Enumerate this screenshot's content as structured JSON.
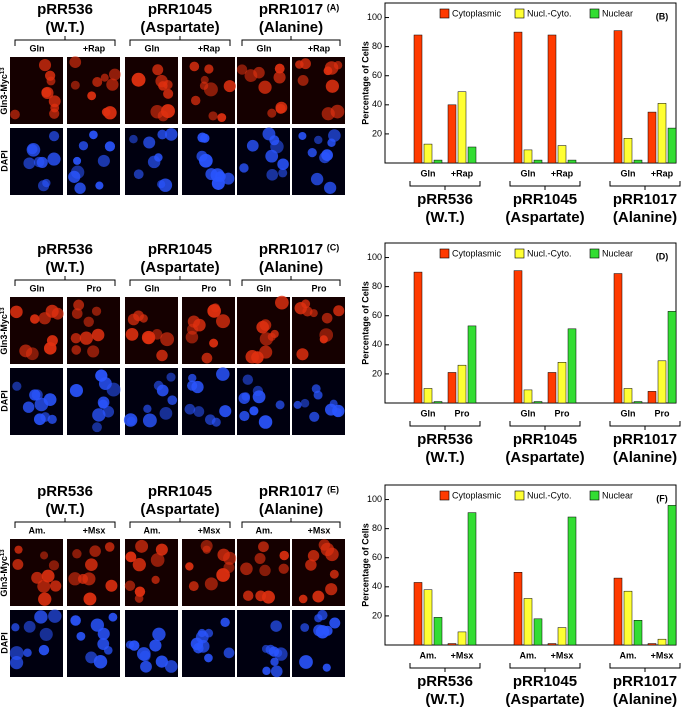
{
  "image_panels": [
    {
      "label": "(A)",
      "strains": [
        {
          "name": "pRR536",
          "variant": "(W.T.)",
          "conditions": [
            "Gln",
            "+Rap"
          ]
        },
        {
          "name": "pRR1045",
          "variant": "(Aspartate)",
          "conditions": [
            "Gln",
            "+Rap"
          ]
        },
        {
          "name": "pRR1017",
          "variant": "(Alanine)",
          "conditions": [
            "Gln",
            "+Rap"
          ]
        }
      ],
      "stain_labels": {
        "myc": "Gln3-Myc",
        "myc_sup": "13",
        "dapi": "DAPI"
      }
    },
    {
      "label": "(C)",
      "strains": [
        {
          "name": "pRR536",
          "variant": "(W.T.)",
          "conditions": [
            "Gln",
            "Pro"
          ]
        },
        {
          "name": "pRR1045",
          "variant": "(Aspartate)",
          "conditions": [
            "Gln",
            "Pro"
          ]
        },
        {
          "name": "pRR1017",
          "variant": "(Alanine)",
          "conditions": [
            "Gln",
            "Pro"
          ]
        }
      ],
      "stain_labels": {
        "myc": "Gln3-Myc",
        "myc_sup": "13",
        "dapi": "DAPI"
      }
    },
    {
      "label": "(E)",
      "strains": [
        {
          "name": "pRR536",
          "variant": "(W.T.)",
          "conditions": [
            "Am.",
            "+Msx"
          ]
        },
        {
          "name": "pRR1045",
          "variant": "(Aspartate)",
          "conditions": [
            "Am.",
            "+Msx"
          ]
        },
        {
          "name": "pRR1017",
          "variant": "(Alanine)",
          "conditions": [
            "Am.",
            "+Msx"
          ]
        }
      ],
      "stain_labels": {
        "myc": "Gln3-Myc",
        "myc_sup": "13",
        "dapi": "DAPI"
      }
    }
  ],
  "chart_data": [
    {
      "type": "bar",
      "label": "(B)",
      "ylabel": "Percentage of Cells",
      "ylim": [
        0,
        110
      ],
      "yticks": [
        20,
        40,
        60,
        80,
        100
      ],
      "legend": "top",
      "categories": [
        "Gln",
        "+Rap",
        "Gln",
        "+Rap",
        "Gln",
        "+Rap"
      ],
      "groups": [
        {
          "name": "pRR536",
          "variant": "(W.T.)"
        },
        {
          "name": "pRR1045",
          "variant": "(Aspartate)"
        },
        {
          "name": "pRR1017",
          "variant": "(Alanine)"
        }
      ],
      "series": [
        {
          "name": "Cytoplasmic",
          "color": "#ff3a00",
          "values": [
            88,
            40,
            90,
            88,
            91,
            35
          ]
        },
        {
          "name": "Nucl.-Cyto.",
          "color": "#ffff33",
          "values": [
            13,
            49,
            9,
            12,
            17,
            41
          ]
        },
        {
          "name": "Nuclear",
          "color": "#33dd33",
          "values": [
            2,
            11,
            2,
            2,
            2,
            24
          ]
        }
      ]
    },
    {
      "type": "bar",
      "label": "(D)",
      "ylabel": "Percentage of Cells",
      "ylim": [
        0,
        110
      ],
      "yticks": [
        20,
        40,
        60,
        80,
        100
      ],
      "legend": "top",
      "categories": [
        "Gln",
        "Pro",
        "Gln",
        "Pro",
        "Gln",
        "Pro"
      ],
      "groups": [
        {
          "name": "pRR536",
          "variant": "(W.T.)"
        },
        {
          "name": "pRR1045",
          "variant": "(Aspartate)"
        },
        {
          "name": "pRR1017",
          "variant": "(Alanine)"
        }
      ],
      "series": [
        {
          "name": "Cytoplasmic",
          "color": "#ff3a00",
          "values": [
            90,
            21,
            91,
            21,
            89,
            8
          ]
        },
        {
          "name": "Nucl.-Cyto.",
          "color": "#ffff33",
          "values": [
            10,
            26,
            9,
            28,
            10,
            29
          ]
        },
        {
          "name": "Nuclear",
          "color": "#33dd33",
          "values": [
            1,
            53,
            1,
            51,
            1,
            63
          ]
        }
      ]
    },
    {
      "type": "bar",
      "label": "(F)",
      "ylabel": "Percentage of Cells",
      "ylim": [
        0,
        110
      ],
      "yticks": [
        20,
        40,
        60,
        80,
        100
      ],
      "legend": "top",
      "categories": [
        "Am.",
        "+Msx",
        "Am.",
        "+Msx",
        "Am.",
        "+Msx"
      ],
      "groups": [
        {
          "name": "pRR536",
          "variant": "(W.T.)"
        },
        {
          "name": "pRR1045",
          "variant": "(Aspartate)"
        },
        {
          "name": "pRR1017",
          "variant": "(Alanine)"
        }
      ],
      "series": [
        {
          "name": "Cytoplasmic",
          "color": "#ff3a00",
          "values": [
            43,
            1,
            50,
            1,
            46,
            1
          ]
        },
        {
          "name": "Nucl.-Cyto.",
          "color": "#ffff33",
          "values": [
            38,
            9,
            32,
            12,
            37,
            4
          ]
        },
        {
          "name": "Nuclear",
          "color": "#33dd33",
          "values": [
            19,
            91,
            18,
            88,
            17,
            96
          ]
        }
      ]
    }
  ]
}
